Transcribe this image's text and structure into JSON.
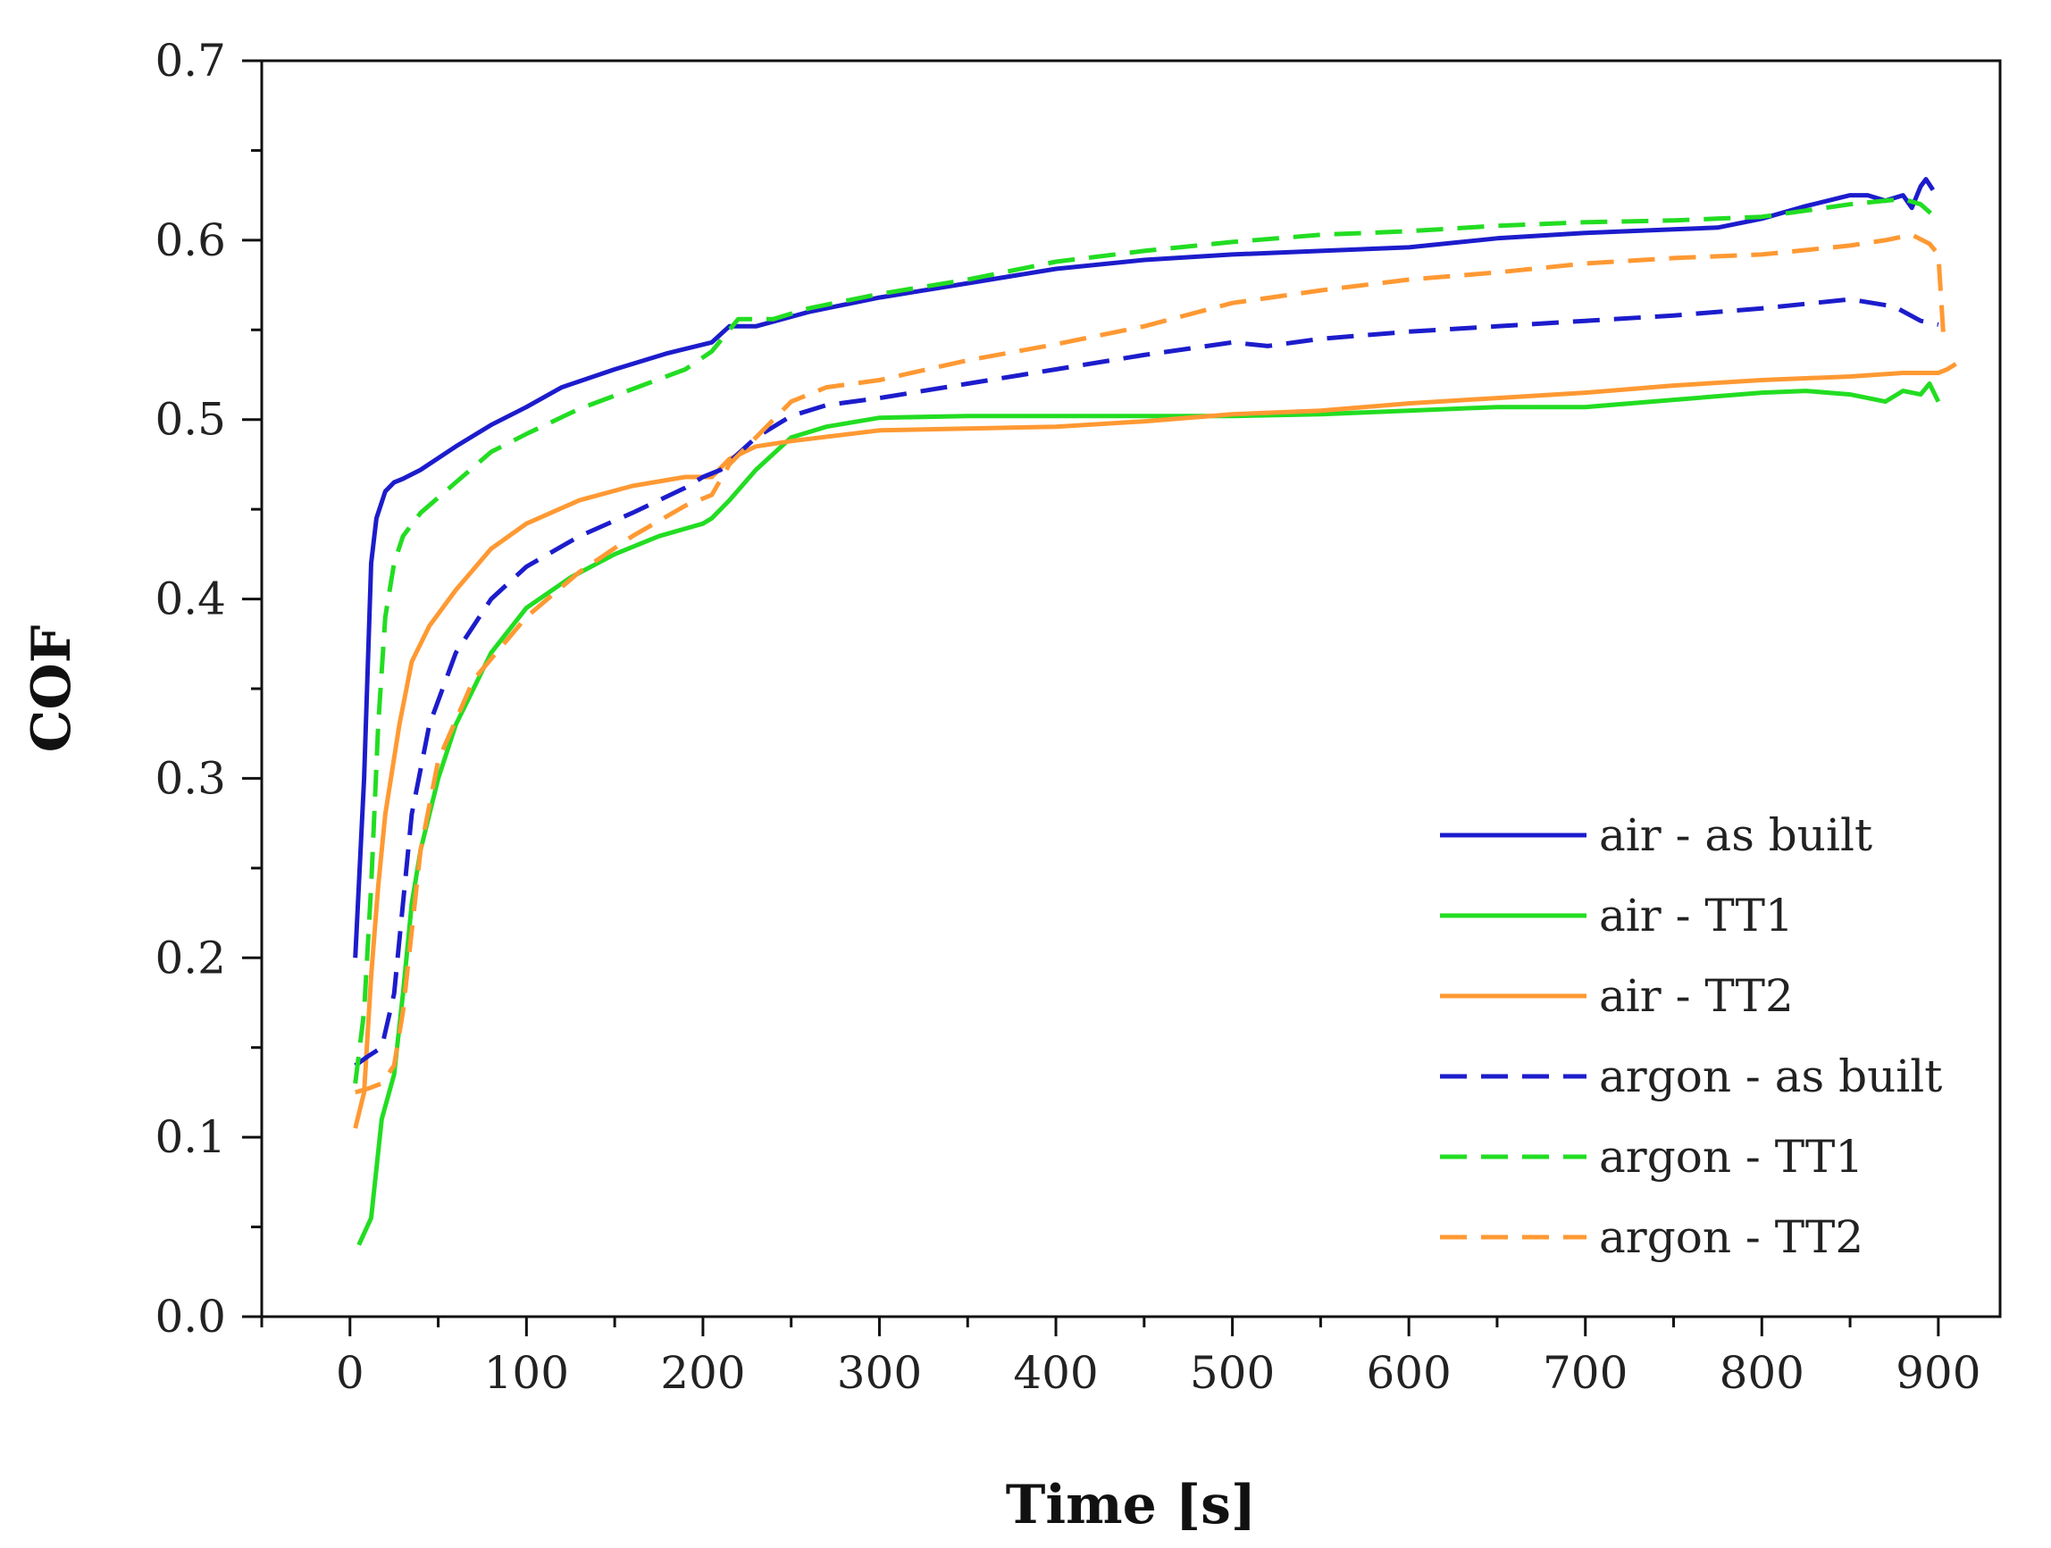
{
  "chart_data": {
    "type": "line",
    "title": "",
    "xlabel": "Time [s]",
    "ylabel": "COF",
    "xlim": [
      -50,
      935
    ],
    "ylim": [
      0.0,
      0.7
    ],
    "xticks": [
      0,
      100,
      200,
      300,
      400,
      500,
      600,
      700,
      800,
      900
    ],
    "xtick_labels": [
      "0",
      "100",
      "200",
      "300",
      "400",
      "500",
      "600",
      "700",
      "800",
      "900"
    ],
    "yticks": [
      0.0,
      0.1,
      0.2,
      0.3,
      0.4,
      0.5,
      0.6,
      0.7
    ],
    "ytick_labels": [
      "0.0",
      "0.1",
      "0.2",
      "0.3",
      "0.4",
      "0.5",
      "0.6",
      "0.7"
    ],
    "grid": false,
    "legend_position": "right",
    "series": [
      {
        "name": "air - as built",
        "color": "#1c1ccc",
        "dash": "solid",
        "x": [
          3,
          8,
          12,
          15,
          20,
          25,
          30,
          40,
          60,
          80,
          100,
          120,
          150,
          180,
          205,
          215,
          230,
          260,
          300,
          350,
          400,
          450,
          500,
          550,
          600,
          650,
          700,
          750,
          775,
          800,
          825,
          850,
          860,
          870,
          880,
          885,
          890,
          893,
          897
        ],
        "y": [
          0.2,
          0.3,
          0.42,
          0.445,
          0.46,
          0.465,
          0.467,
          0.472,
          0.485,
          0.497,
          0.507,
          0.518,
          0.528,
          0.537,
          0.543,
          0.552,
          0.552,
          0.56,
          0.568,
          0.576,
          0.584,
          0.589,
          0.592,
          0.594,
          0.596,
          0.601,
          0.604,
          0.606,
          0.607,
          0.612,
          0.619,
          0.625,
          0.625,
          0.622,
          0.625,
          0.618,
          0.63,
          0.634,
          0.628
        ]
      },
      {
        "name": "air - TT1",
        "color": "#22dd22",
        "dash": "solid",
        "x": [
          5,
          12,
          18,
          25,
          30,
          35,
          40,
          50,
          60,
          80,
          100,
          125,
          150,
          175,
          200,
          205,
          215,
          230,
          250,
          270,
          300,
          350,
          400,
          450,
          500,
          550,
          600,
          650,
          700,
          750,
          800,
          825,
          850,
          870,
          880,
          890,
          895,
          900
        ],
        "y": [
          0.04,
          0.055,
          0.11,
          0.135,
          0.18,
          0.23,
          0.26,
          0.3,
          0.33,
          0.37,
          0.395,
          0.412,
          0.425,
          0.435,
          0.442,
          0.445,
          0.455,
          0.472,
          0.49,
          0.496,
          0.501,
          0.502,
          0.502,
          0.502,
          0.502,
          0.503,
          0.505,
          0.507,
          0.507,
          0.511,
          0.515,
          0.516,
          0.514,
          0.51,
          0.516,
          0.514,
          0.52,
          0.51
        ]
      },
      {
        "name": "air - TT2",
        "color": "#ff9933",
        "dash": "solid",
        "x": [
          3,
          8,
          12,
          16,
          20,
          28,
          35,
          45,
          60,
          80,
          100,
          130,
          160,
          190,
          205,
          215,
          230,
          250,
          300,
          350,
          400,
          450,
          500,
          550,
          600,
          650,
          700,
          750,
          800,
          850,
          880,
          900,
          905,
          910
        ],
        "y": [
          0.105,
          0.125,
          0.19,
          0.24,
          0.28,
          0.33,
          0.365,
          0.385,
          0.405,
          0.428,
          0.442,
          0.455,
          0.463,
          0.468,
          0.468,
          0.478,
          0.485,
          0.488,
          0.494,
          0.495,
          0.496,
          0.499,
          0.503,
          0.505,
          0.509,
          0.512,
          0.515,
          0.519,
          0.522,
          0.524,
          0.526,
          0.526,
          0.528,
          0.531
        ]
      },
      {
        "name": "argon - as built",
        "color": "#1c1ccc",
        "dash": "dashed",
        "x": [
          3,
          10,
          18,
          25,
          35,
          45,
          60,
          80,
          100,
          130,
          160,
          190,
          200,
          210,
          230,
          250,
          270,
          300,
          350,
          400,
          450,
          500,
          520,
          550,
          600,
          650,
          700,
          750,
          800,
          850,
          875,
          890,
          900
        ],
        "y": [
          0.14,
          0.145,
          0.15,
          0.18,
          0.28,
          0.33,
          0.37,
          0.4,
          0.418,
          0.435,
          0.448,
          0.462,
          0.468,
          0.472,
          0.49,
          0.502,
          0.508,
          0.512,
          0.52,
          0.528,
          0.536,
          0.543,
          0.541,
          0.545,
          0.549,
          0.552,
          0.555,
          0.558,
          0.562,
          0.567,
          0.563,
          0.555,
          0.553
        ]
      },
      {
        "name": "argon - TT1",
        "color": "#22dd22",
        "dash": "dashed",
        "x": [
          3,
          8,
          12,
          16,
          20,
          25,
          30,
          40,
          60,
          80,
          100,
          130,
          160,
          190,
          205,
          220,
          240,
          260,
          300,
          350,
          400,
          450,
          500,
          550,
          600,
          650,
          700,
          750,
          800,
          850,
          880,
          890,
          898
        ],
        "y": [
          0.13,
          0.17,
          0.24,
          0.33,
          0.39,
          0.42,
          0.435,
          0.448,
          0.465,
          0.482,
          0.492,
          0.506,
          0.517,
          0.528,
          0.538,
          0.556,
          0.556,
          0.562,
          0.57,
          0.578,
          0.588,
          0.594,
          0.599,
          0.603,
          0.605,
          0.608,
          0.61,
          0.611,
          0.613,
          0.62,
          0.623,
          0.62,
          0.613
        ]
      },
      {
        "name": "argon - TT2",
        "color": "#ff9933",
        "dash": "dashed",
        "x": [
          3,
          10,
          18,
          25,
          30,
          40,
          50,
          70,
          100,
          130,
          160,
          190,
          205,
          215,
          230,
          250,
          270,
          300,
          350,
          400,
          450,
          500,
          550,
          600,
          650,
          700,
          750,
          800,
          850,
          870,
          885,
          895,
          900,
          903
        ],
        "y": [
          0.125,
          0.127,
          0.13,
          0.14,
          0.17,
          0.26,
          0.31,
          0.355,
          0.39,
          0.415,
          0.435,
          0.452,
          0.458,
          0.475,
          0.49,
          0.51,
          0.518,
          0.522,
          0.533,
          0.542,
          0.552,
          0.565,
          0.572,
          0.578,
          0.582,
          0.587,
          0.59,
          0.592,
          0.597,
          0.6,
          0.603,
          0.598,
          0.592,
          0.545
        ]
      }
    ]
  }
}
